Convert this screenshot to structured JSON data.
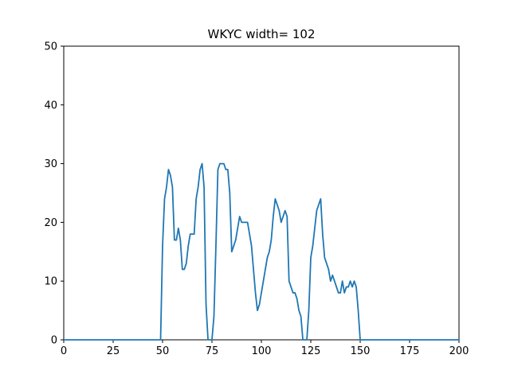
{
  "chart_data": {
    "type": "line",
    "title": "WKYC width= 102",
    "xlabel": "",
    "ylabel": "",
    "xlim": [
      0,
      200
    ],
    "ylim": [
      0,
      50
    ],
    "xticks": [
      0,
      25,
      50,
      75,
      100,
      125,
      150,
      175,
      200
    ],
    "yticks": [
      0,
      10,
      20,
      30,
      40,
      50
    ],
    "grid": false,
    "series_color": "#1f77b4",
    "series": [
      {
        "x": [
          0,
          49,
          50,
          51,
          52,
          53,
          54,
          55,
          56,
          57,
          58,
          59,
          60,
          61,
          62,
          63,
          64,
          65,
          66,
          67,
          68,
          69,
          70,
          71,
          72,
          73,
          74,
          75,
          76,
          77,
          78,
          79,
          80,
          81,
          82,
          83,
          84,
          85,
          86,
          87,
          88,
          89,
          90,
          91,
          92,
          93,
          94,
          95,
          96,
          97,
          98,
          99,
          100,
          101,
          102,
          103,
          104,
          105,
          106,
          107,
          108,
          109,
          110,
          111,
          112,
          113,
          114,
          115,
          116,
          117,
          118,
          119,
          120,
          121,
          122,
          123,
          124,
          125,
          126,
          127,
          128,
          129,
          130,
          131,
          132,
          133,
          134,
          135,
          136,
          137,
          138,
          139,
          140,
          141,
          142,
          143,
          144,
          145,
          146,
          147,
          148,
          149,
          150,
          151,
          152,
          200
        ],
        "y": [
          0,
          0,
          16,
          24,
          26,
          29,
          28,
          26,
          17,
          17,
          19,
          17,
          12,
          12,
          13,
          16,
          18,
          18,
          18,
          24,
          26,
          29,
          30,
          26,
          6,
          0,
          0,
          0,
          4,
          16,
          29,
          30,
          30,
          30,
          29,
          29,
          25,
          15,
          16,
          17,
          19,
          21,
          20,
          20,
          20,
          20,
          18,
          16,
          12,
          8,
          5,
          6,
          8,
          10,
          12,
          14,
          15,
          17,
          21,
          24,
          23,
          22,
          20,
          21,
          22,
          21,
          10,
          9,
          8,
          8,
          7,
          5,
          4,
          0,
          0,
          0,
          5,
          14,
          16,
          19,
          22,
          23,
          24,
          18,
          14,
          13,
          12,
          10,
          11,
          10,
          9,
          8,
          8,
          10,
          8,
          9,
          9,
          10,
          9,
          10,
          9,
          5,
          0,
          0,
          0,
          0
        ]
      }
    ]
  }
}
